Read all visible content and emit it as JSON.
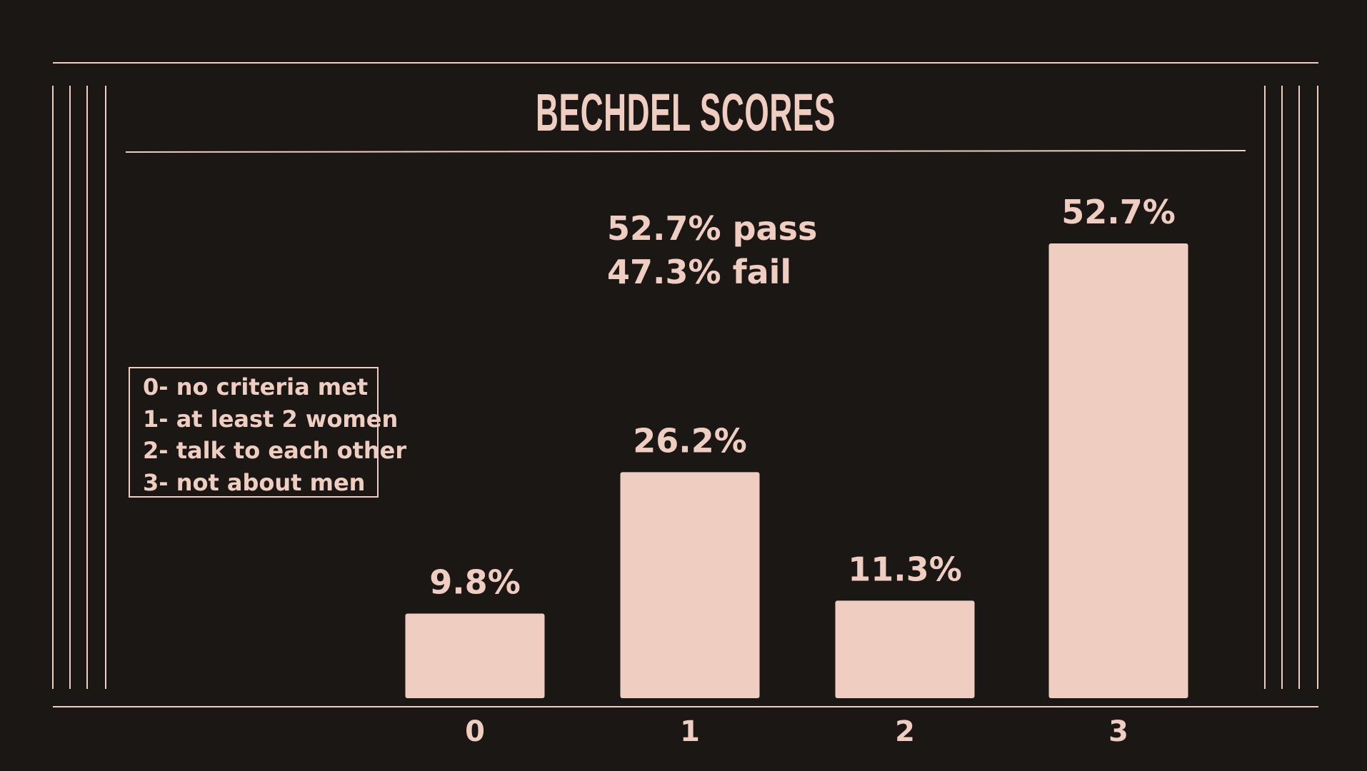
{
  "colors": {
    "background": "#1b1715",
    "accent": "#f0cdc1"
  },
  "chart_data": {
    "type": "bar",
    "title": "BECHDEL SCORES",
    "categories": [
      "0",
      "1",
      "2",
      "3"
    ],
    "values": [
      9.8,
      26.2,
      11.3,
      52.7
    ],
    "value_labels": [
      "9.8%",
      "26.2%",
      "11.3%",
      "52.7%"
    ],
    "ylim": [
      0,
      60
    ],
    "grid": false,
    "annotations": [
      "52.7% pass",
      "47.3% fail"
    ],
    "legend": {
      "placement": "left",
      "entries": [
        "0- no criteria met",
        "1- at least 2 women",
        "2- talk to each other",
        "3- not about men"
      ]
    }
  }
}
